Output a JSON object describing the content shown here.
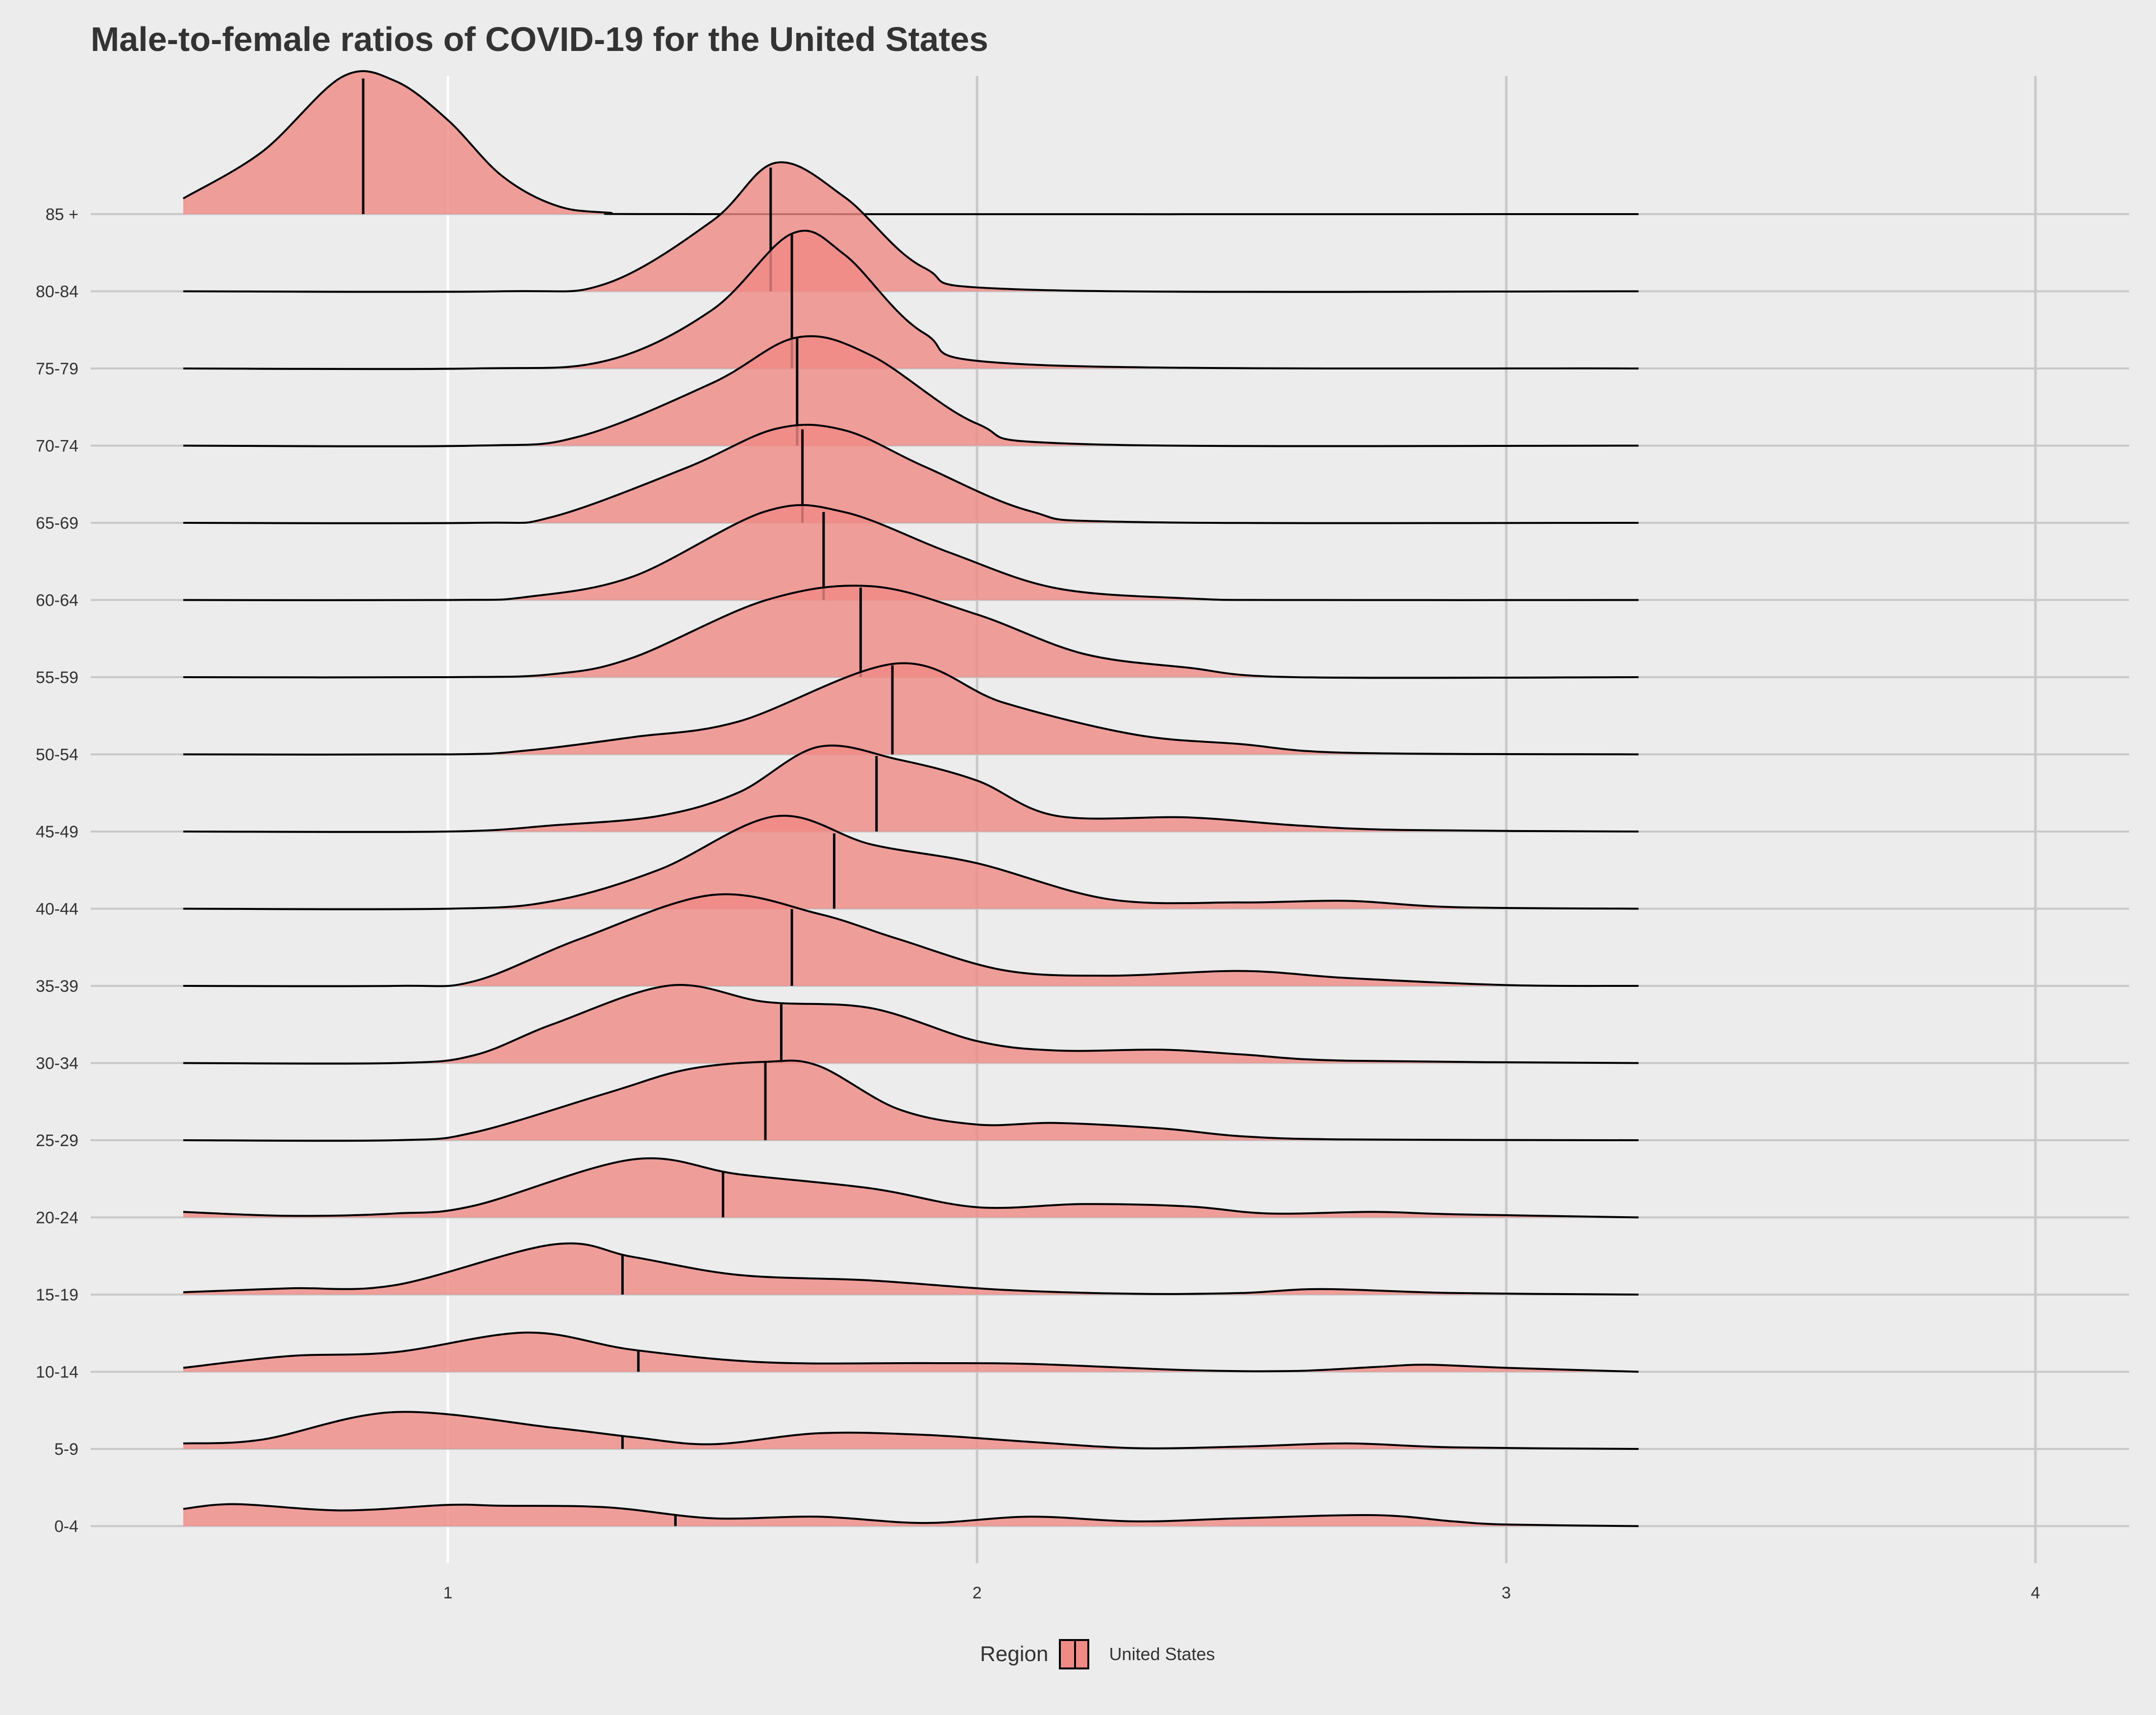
{
  "chart_data": {
    "type": "ridgeline",
    "title": "Male-to-female ratios of COVID-19 for the United States",
    "xlabel": "",
    "ylabel": "",
    "x_ticks": [
      1,
      2,
      3,
      4
    ],
    "xlim": [
      0.35,
      4.2
    ],
    "density_range": [
      0.5,
      3.25
    ],
    "grid": true,
    "legend": {
      "title": "Region",
      "position": "bottom",
      "entries": [
        "United States"
      ]
    },
    "colors": {
      "fill": "#f08a84",
      "fill_opacity": 0.8,
      "line": "#000000",
      "background": "#ececec",
      "grid": "#c8c8c8",
      "grid_at_1": "#ffffff"
    },
    "series": [
      {
        "category": "0-4",
        "median": 1.43,
        "points": [
          [
            0.5,
            0.22
          ],
          [
            0.6,
            0.28
          ],
          [
            0.8,
            0.2
          ],
          [
            1.0,
            0.27
          ],
          [
            1.1,
            0.26
          ],
          [
            1.3,
            0.24
          ],
          [
            1.5,
            0.1
          ],
          [
            1.7,
            0.12
          ],
          [
            1.9,
            0.04
          ],
          [
            2.1,
            0.12
          ],
          [
            2.3,
            0.06
          ],
          [
            2.5,
            0.1
          ],
          [
            2.75,
            0.14
          ],
          [
            2.9,
            0.06
          ],
          [
            3.0,
            0.02
          ],
          [
            3.25,
            0.0
          ]
        ]
      },
      {
        "category": "5-9",
        "median": 1.33,
        "points": [
          [
            0.5,
            0.07
          ],
          [
            0.65,
            0.12
          ],
          [
            0.9,
            0.47
          ],
          [
            1.2,
            0.27
          ],
          [
            1.35,
            0.15
          ],
          [
            1.5,
            0.06
          ],
          [
            1.7,
            0.2
          ],
          [
            1.9,
            0.18
          ],
          [
            2.1,
            0.09
          ],
          [
            2.3,
            0.01
          ],
          [
            2.5,
            0.03
          ],
          [
            2.7,
            0.07
          ],
          [
            2.9,
            0.02
          ],
          [
            3.25,
            0.0
          ]
        ]
      },
      {
        "category": "10-14",
        "median": 1.36,
        "points": [
          [
            0.5,
            0.05
          ],
          [
            0.7,
            0.2
          ],
          [
            0.9,
            0.25
          ],
          [
            1.15,
            0.5
          ],
          [
            1.35,
            0.28
          ],
          [
            1.6,
            0.12
          ],
          [
            1.9,
            0.11
          ],
          [
            2.1,
            0.1
          ],
          [
            2.4,
            0.02
          ],
          [
            2.6,
            0.01
          ],
          [
            2.75,
            0.06
          ],
          [
            2.85,
            0.09
          ],
          [
            3.0,
            0.05
          ],
          [
            3.25,
            0.0
          ]
        ]
      },
      {
        "category": "15-19",
        "median": 1.33,
        "points": [
          [
            0.5,
            0.03
          ],
          [
            0.7,
            0.08
          ],
          [
            0.9,
            0.12
          ],
          [
            1.2,
            0.64
          ],
          [
            1.35,
            0.48
          ],
          [
            1.55,
            0.25
          ],
          [
            1.8,
            0.18
          ],
          [
            2.05,
            0.06
          ],
          [
            2.3,
            0.01
          ],
          [
            2.5,
            0.02
          ],
          [
            2.65,
            0.07
          ],
          [
            2.9,
            0.02
          ],
          [
            3.25,
            0.0
          ]
        ]
      },
      {
        "category": "20-24",
        "median": 1.52,
        "points": [
          [
            0.5,
            0.07
          ],
          [
            0.7,
            0.02
          ],
          [
            0.9,
            0.05
          ],
          [
            1.05,
            0.15
          ],
          [
            1.35,
            0.74
          ],
          [
            1.55,
            0.55
          ],
          [
            1.8,
            0.37
          ],
          [
            2.0,
            0.13
          ],
          [
            2.2,
            0.17
          ],
          [
            2.4,
            0.14
          ],
          [
            2.55,
            0.05
          ],
          [
            2.75,
            0.07
          ],
          [
            2.9,
            0.04
          ],
          [
            3.25,
            0.0
          ]
        ]
      },
      {
        "category": "25-29",
        "median": 1.6,
        "points": [
          [
            0.5,
            0.0
          ],
          [
            0.9,
            0.0
          ],
          [
            1.05,
            0.1
          ],
          [
            1.3,
            0.6
          ],
          [
            1.45,
            0.9
          ],
          [
            1.6,
            1.0
          ],
          [
            1.7,
            0.95
          ],
          [
            1.85,
            0.4
          ],
          [
            2.0,
            0.2
          ],
          [
            2.15,
            0.22
          ],
          [
            2.35,
            0.15
          ],
          [
            2.5,
            0.05
          ],
          [
            2.7,
            0.01
          ],
          [
            3.25,
            0.0
          ]
        ]
      },
      {
        "category": "30-34",
        "median": 1.63,
        "points": [
          [
            0.5,
            0.0
          ],
          [
            0.9,
            0.0
          ],
          [
            1.05,
            0.1
          ],
          [
            1.2,
            0.5
          ],
          [
            1.42,
            0.99
          ],
          [
            1.6,
            0.78
          ],
          [
            1.8,
            0.7
          ],
          [
            2.0,
            0.28
          ],
          [
            2.15,
            0.16
          ],
          [
            2.35,
            0.17
          ],
          [
            2.5,
            0.11
          ],
          [
            2.7,
            0.03
          ],
          [
            3.25,
            0.0
          ]
        ]
      },
      {
        "category": "35-39",
        "median": 1.65,
        "points": [
          [
            0.5,
            0.0
          ],
          [
            0.9,
            0.0
          ],
          [
            1.05,
            0.06
          ],
          [
            1.25,
            0.6
          ],
          [
            1.5,
            1.16
          ],
          [
            1.7,
            0.92
          ],
          [
            1.85,
            0.6
          ],
          [
            2.05,
            0.2
          ],
          [
            2.25,
            0.13
          ],
          [
            2.5,
            0.19
          ],
          [
            2.7,
            0.1
          ],
          [
            3.0,
            0.01
          ],
          [
            3.25,
            0.0
          ]
        ]
      },
      {
        "category": "40-44",
        "median": 1.73,
        "points": [
          [
            0.5,
            0.0
          ],
          [
            1.0,
            0.0
          ],
          [
            1.2,
            0.1
          ],
          [
            1.4,
            0.5
          ],
          [
            1.62,
            1.18
          ],
          [
            1.8,
            0.82
          ],
          [
            2.0,
            0.58
          ],
          [
            2.25,
            0.12
          ],
          [
            2.5,
            0.08
          ],
          [
            2.7,
            0.1
          ],
          [
            2.9,
            0.02
          ],
          [
            3.25,
            0.0
          ]
        ]
      },
      {
        "category": "45-49",
        "median": 1.81,
        "points": [
          [
            0.5,
            0.0
          ],
          [
            1.0,
            0.0
          ],
          [
            1.2,
            0.08
          ],
          [
            1.4,
            0.2
          ],
          [
            1.55,
            0.5
          ],
          [
            1.7,
            1.08
          ],
          [
            1.85,
            0.92
          ],
          [
            2.0,
            0.65
          ],
          [
            2.15,
            0.2
          ],
          [
            2.4,
            0.18
          ],
          [
            2.6,
            0.08
          ],
          [
            2.8,
            0.02
          ],
          [
            3.25,
            0.0
          ]
        ]
      },
      {
        "category": "50-54",
        "median": 1.84,
        "points": [
          [
            0.5,
            0.0
          ],
          [
            1.0,
            0.0
          ],
          [
            1.15,
            0.05
          ],
          [
            1.35,
            0.22
          ],
          [
            1.55,
            0.42
          ],
          [
            1.85,
            1.16
          ],
          [
            2.05,
            0.66
          ],
          [
            2.3,
            0.25
          ],
          [
            2.5,
            0.13
          ],
          [
            2.7,
            0.02
          ],
          [
            3.25,
            0.0
          ]
        ]
      },
      {
        "category": "55-59",
        "median": 1.78,
        "points": [
          [
            0.5,
            0.0
          ],
          [
            1.0,
            0.0
          ],
          [
            1.2,
            0.04
          ],
          [
            1.35,
            0.25
          ],
          [
            1.6,
            0.98
          ],
          [
            1.8,
            1.16
          ],
          [
            2.0,
            0.8
          ],
          [
            2.2,
            0.3
          ],
          [
            2.4,
            0.12
          ],
          [
            2.6,
            0.0
          ],
          [
            3.25,
            0.0
          ]
        ]
      },
      {
        "category": "60-64",
        "median": 1.71,
        "points": [
          [
            0.5,
            0.0
          ],
          [
            1.0,
            0.0
          ],
          [
            1.15,
            0.04
          ],
          [
            1.35,
            0.3
          ],
          [
            1.6,
            1.13
          ],
          [
            1.75,
            1.12
          ],
          [
            1.95,
            0.6
          ],
          [
            2.15,
            0.15
          ],
          [
            2.4,
            0.02
          ],
          [
            2.6,
            0.0
          ],
          [
            3.25,
            0.0
          ]
        ]
      },
      {
        "category": "65-69",
        "median": 1.67,
        "points": [
          [
            0.5,
            0.0
          ],
          [
            1.05,
            0.0
          ],
          [
            1.2,
            0.08
          ],
          [
            1.45,
            0.7
          ],
          [
            1.62,
            1.2
          ],
          [
            1.75,
            1.18
          ],
          [
            1.9,
            0.72
          ],
          [
            2.1,
            0.15
          ],
          [
            2.3,
            0.01
          ],
          [
            3.25,
            0.0
          ]
        ]
      },
      {
        "category": "70-74",
        "median": 1.66,
        "points": [
          [
            0.5,
            0.0
          ],
          [
            1.05,
            0.0
          ],
          [
            1.25,
            0.12
          ],
          [
            1.5,
            0.8
          ],
          [
            1.66,
            1.38
          ],
          [
            1.8,
            1.15
          ],
          [
            2.0,
            0.28
          ],
          [
            2.2,
            0.02
          ],
          [
            3.25,
            0.0
          ]
        ]
      },
      {
        "category": "75-79",
        "median": 1.65,
        "points": [
          [
            0.5,
            0.0
          ],
          [
            1.05,
            0.0
          ],
          [
            1.3,
            0.1
          ],
          [
            1.5,
            0.75
          ],
          [
            1.65,
            1.72
          ],
          [
            1.75,
            1.45
          ],
          [
            1.9,
            0.45
          ],
          [
            2.1,
            0.05
          ],
          [
            3.25,
            0.0
          ]
        ]
      },
      {
        "category": "80-84",
        "median": 1.61,
        "points": [
          [
            0.5,
            0.0
          ],
          [
            1.1,
            0.0
          ],
          [
            1.3,
            0.1
          ],
          [
            1.5,
            0.9
          ],
          [
            1.62,
            1.64
          ],
          [
            1.75,
            1.2
          ],
          [
            1.9,
            0.3
          ],
          [
            2.1,
            0.02
          ],
          [
            3.25,
            0.0
          ]
        ]
      },
      {
        "category": "85 +",
        "median": 0.84,
        "points": [
          [
            0.5,
            0.2
          ],
          [
            0.65,
            0.8
          ],
          [
            0.8,
            1.75
          ],
          [
            0.9,
            1.7
          ],
          [
            1.0,
            1.2
          ],
          [
            1.1,
            0.5
          ],
          [
            1.2,
            0.12
          ],
          [
            1.3,
            0.02
          ],
          [
            1.5,
            0.0
          ],
          [
            3.25,
            0.0
          ]
        ]
      }
    ]
  }
}
